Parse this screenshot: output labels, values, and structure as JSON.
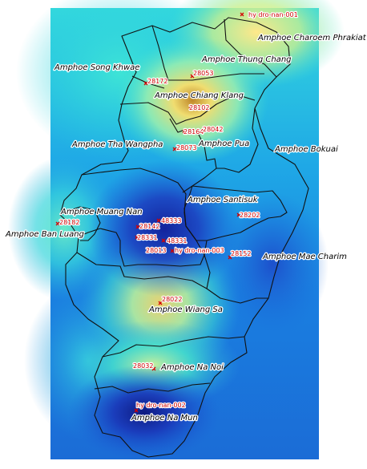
{
  "districts": [
    {
      "name": "Amphoe Charoem Phrakiat"
    },
    {
      "name": "Amphoe Thung Chang"
    },
    {
      "name": "Amphoe Song Khwae"
    },
    {
      "name": "Amphoe Chiang Klang"
    },
    {
      "name": "Amphoe Tha Wangpha"
    },
    {
      "name": "Amphoe Pua"
    },
    {
      "name": "Amphoe Bokuai"
    },
    {
      "name": "Amphoe Santisuk"
    },
    {
      "name": "Amphoe Muang Nan"
    },
    {
      "name": "Amphoe Ban Luang"
    },
    {
      "name": "Amphoe Mae Charim"
    },
    {
      "name": "Amphoe Wiang Sa"
    },
    {
      "name": "Amphoe Na Noi"
    },
    {
      "name": "Amphoe Na Mun"
    }
  ],
  "stations": [
    {
      "id": "hy dro-nan-001"
    },
    {
      "id": "28053"
    },
    {
      "id": "28172"
    },
    {
      "id": "28102"
    },
    {
      "id": "28164"
    },
    {
      "id": "28042"
    },
    {
      "id": "28073"
    },
    {
      "id": "28202"
    },
    {
      "id": "28182"
    },
    {
      "id": "48333"
    },
    {
      "id": "28142"
    },
    {
      "id": "28331"
    },
    {
      "id": "48331"
    },
    {
      "id": "hy dro-nan-003"
    },
    {
      "id": "28013"
    },
    {
      "id": "28152"
    },
    {
      "id": "28022"
    },
    {
      "id": "28032"
    },
    {
      "id": "hy dro-nan-002"
    }
  ],
  "colors": {
    "low": "#1830b8",
    "mid_low": "#1a78e0",
    "mid": "#2cd6e0",
    "mid_high": "#8ef0b8",
    "high": "#f0e070",
    "peak": "#c89020",
    "boundary": "#111111",
    "station": "#d40000"
  }
}
